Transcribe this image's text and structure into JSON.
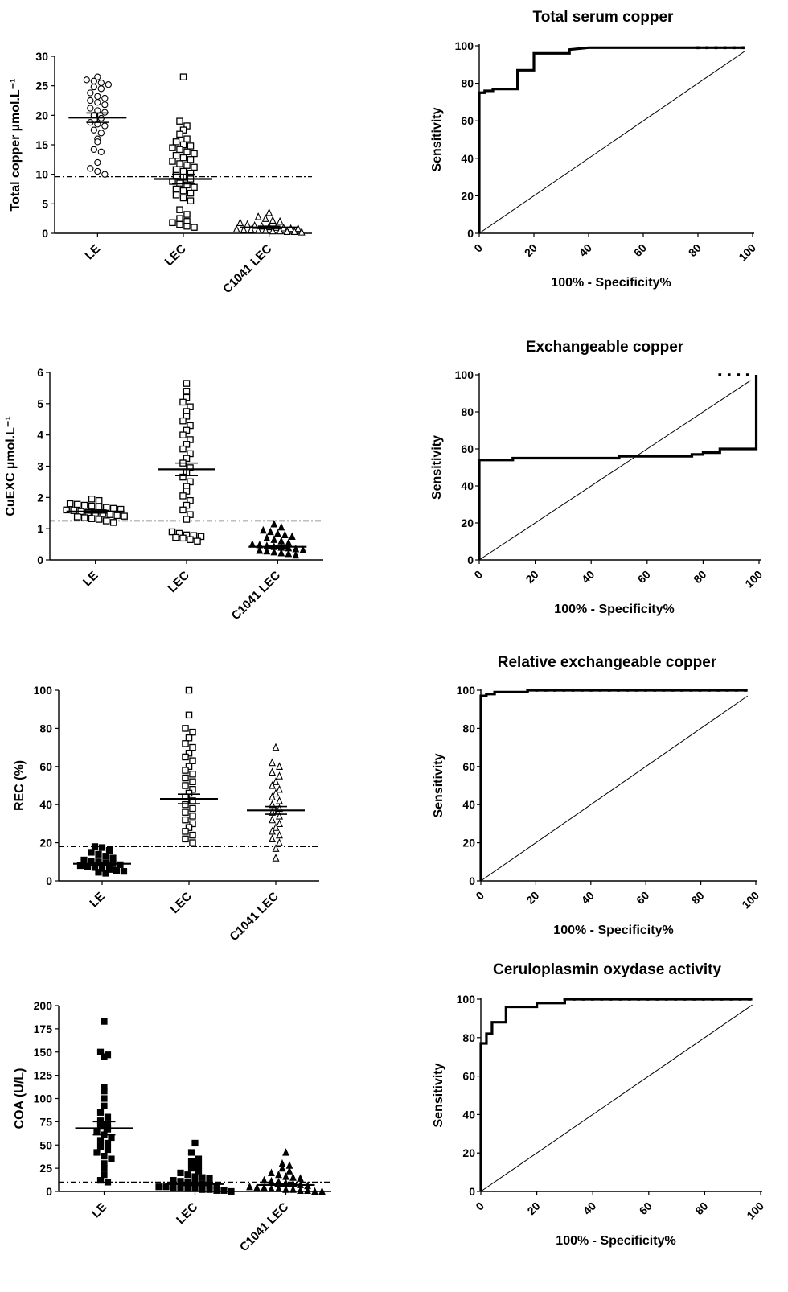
{
  "chart_data": [
    {
      "type": "scatter",
      "title": "",
      "ylabel": "Total copper µmol.L⁻¹",
      "ylim": [
        0,
        30
      ],
      "yticks": [
        0,
        5,
        10,
        15,
        20,
        25,
        30
      ],
      "categories": [
        "LE",
        "LEC",
        "C1041 LEC"
      ],
      "markers": [
        "circle-open",
        "square-open",
        "triangle-open"
      ],
      "series": [
        {
          "values": [
            26.5,
            26,
            25.8,
            25.5,
            25.2,
            24.8,
            24.5,
            23.8,
            23.2,
            22.9,
            22.5,
            22.2,
            21.8,
            21.2,
            20.8,
            20.5,
            20.0,
            19.5,
            18.8,
            18.5,
            18.2,
            17.5,
            17.0,
            16.0,
            15.5,
            14.2,
            13.8,
            12.0,
            11.0,
            10.5,
            10.0
          ],
          "mean": 19.6,
          "sem": 0.8
        },
        {
          "values": [
            26.5,
            19.0,
            18.2,
            17.5,
            16.8,
            16.0,
            15.5,
            15.0,
            14.8,
            14.5,
            14.2,
            13.8,
            13.5,
            13.2,
            12.8,
            12.5,
            12.2,
            11.8,
            11.5,
            11.2,
            10.8,
            10.5,
            10.2,
            9.8,
            9.5,
            9.2,
            8.8,
            8.5,
            8.2,
            7.8,
            7.5,
            7.2,
            6.8,
            6.5,
            6.0,
            5.5,
            4.0,
            3.2,
            2.5,
            2.0,
            1.8,
            1.5,
            1.2,
            1.0
          ],
          "mean": 9.2,
          "sem": 0.8
        },
        {
          "values": [
            3.5,
            2.8,
            2.5,
            2.2,
            2.0,
            1.8,
            1.5,
            1.3,
            1.2,
            1.1,
            1.0,
            0.9,
            0.8,
            0.8,
            0.7,
            0.6,
            0.6,
            0.5,
            0.5,
            0.4,
            0.4,
            0.3,
            0.3,
            0.2
          ],
          "mean": 1.0,
          "sem": 0.2
        }
      ],
      "cutoff": 9.6
    },
    {
      "type": "line",
      "title": "Total serum copper",
      "xlabel": "100% - Specificity%",
      "ylabel": "Sensitivity",
      "xlim": [
        0,
        100
      ],
      "ylim": [
        0,
        100
      ],
      "xticks": [
        0,
        20,
        40,
        60,
        80,
        100
      ],
      "yticks": [
        0,
        20,
        40,
        60,
        80,
        100
      ],
      "series": [
        {
          "x": [
            0,
            0,
            2,
            2,
            5,
            5,
            8,
            8,
            14,
            14,
            20,
            20,
            33,
            33,
            40,
            50,
            60,
            70,
            80,
            90,
            97
          ],
          "y": [
            0,
            75,
            75,
            76,
            76,
            77,
            77,
            77,
            77,
            87,
            87,
            96,
            96,
            98,
            99,
            99,
            99,
            99,
            99,
            99,
            99
          ],
          "markers": true
        },
        {
          "x": [
            0,
            100
          ],
          "y": [
            0,
            100
          ],
          "reference": true
        }
      ]
    },
    {
      "type": "scatter",
      "title": "",
      "ylabel": "CuEXC µmol.L⁻¹",
      "ylim": [
        0,
        6
      ],
      "yticks": [
        0,
        1,
        2,
        3,
        4,
        5,
        6
      ],
      "categories": [
        "LE",
        "LEC",
        "C1041 LEC"
      ],
      "markers": [
        "square-open",
        "square-open",
        "triangle-filled"
      ],
      "series": [
        {
          "values": [
            1.95,
            1.9,
            1.8,
            1.78,
            1.75,
            1.72,
            1.7,
            1.68,
            1.65,
            1.62,
            1.6,
            1.58,
            1.55,
            1.52,
            1.5,
            1.48,
            1.45,
            1.42,
            1.4,
            1.38,
            1.35,
            1.32,
            1.3,
            1.25,
            1.2
          ],
          "mean": 1.55,
          "sem": 0.05
        },
        {
          "values": [
            5.65,
            5.4,
            5.2,
            5.05,
            4.9,
            4.75,
            4.6,
            4.45,
            4.3,
            4.15,
            4.0,
            3.85,
            3.7,
            3.55,
            3.4,
            3.25,
            3.1,
            2.95,
            2.8,
            2.65,
            2.5,
            2.35,
            2.2,
            2.05,
            1.9,
            1.75,
            1.6,
            1.45,
            1.3,
            0.9,
            0.85,
            0.8,
            0.78,
            0.75,
            0.72,
            0.7,
            0.65,
            0.6
          ],
          "mean": 2.9,
          "sem": 0.2
        },
        {
          "values": [
            1.15,
            1.05,
            0.95,
            0.9,
            0.85,
            0.8,
            0.75,
            0.7,
            0.65,
            0.6,
            0.55,
            0.5,
            0.48,
            0.45,
            0.42,
            0.4,
            0.38,
            0.35,
            0.32,
            0.3,
            0.28,
            0.25,
            0.22,
            0.2,
            0.15
          ],
          "mean": 0.42,
          "sem": 0.04
        }
      ],
      "cutoff": 1.25
    },
    {
      "type": "line",
      "title": "Exchangeable copper",
      "xlabel": "100% - Specificity%",
      "ylabel": "Sensitivity",
      "xlim": [
        0,
        100
      ],
      "ylim": [
        0,
        100
      ],
      "xticks": [
        0,
        20,
        40,
        60,
        80,
        100
      ],
      "yticks": [
        0,
        20,
        40,
        60,
        80,
        100
      ],
      "series": [
        {
          "x": [
            0,
            0,
            12,
            12,
            50,
            50,
            76,
            76,
            80,
            80,
            86,
            86,
            99,
            99
          ],
          "y": [
            0,
            54,
            54,
            55,
            55,
            56,
            56,
            57,
            57,
            58,
            58,
            60,
            60,
            100
          ],
          "markers": true
        },
        {
          "x": [
            0,
            100
          ],
          "y": [
            0,
            100
          ],
          "reference": true
        }
      ]
    },
    {
      "type": "scatter",
      "title": "",
      "ylabel": "REC (%)",
      "ylim": [
        0,
        100
      ],
      "yticks": [
        0,
        20,
        40,
        60,
        80,
        100
      ],
      "categories": [
        "LE",
        "LEC",
        "C1041 LEC"
      ],
      "markers": [
        "filled-square",
        "square-open",
        "triangle-open"
      ],
      "series": [
        {
          "values": [
            18,
            17.5,
            16,
            15,
            14,
            13,
            12,
            11,
            10.5,
            10,
            9.5,
            9,
            8.5,
            8,
            7.5,
            7,
            6.5,
            6,
            5.5,
            5,
            4.5,
            4
          ],
          "mean": 9,
          "sem": 0.8
        },
        {
          "values": [
            100,
            87,
            80,
            78,
            75,
            72,
            70,
            67,
            65,
            63,
            60,
            58,
            56,
            54,
            52,
            50,
            48,
            46,
            44,
            42,
            40,
            38,
            36,
            34,
            32,
            30,
            28,
            26,
            24,
            22,
            20
          ],
          "mean": 43,
          "sem": 2.5
        },
        {
          "values": [
            70,
            62,
            60,
            57,
            55,
            52,
            50,
            48,
            46,
            44,
            42,
            40,
            38,
            36,
            34,
            32,
            30,
            28,
            26,
            24,
            22,
            20,
            17,
            12
          ],
          "mean": 37,
          "sem": 2.0
        }
      ],
      "cutoff": 18
    },
    {
      "type": "line",
      "title": "Relative exchangeable copper",
      "xlabel": "100% - Specificity%",
      "ylabel": "Sensitivity",
      "xlim": [
        0,
        100
      ],
      "ylim": [
        0,
        100
      ],
      "xticks": [
        0,
        20,
        40,
        60,
        80,
        100
      ],
      "yticks": [
        0,
        20,
        40,
        60,
        80,
        100
      ],
      "series": [
        {
          "x": [
            0,
            0,
            2,
            2,
            5,
            5,
            17,
            17,
            97
          ],
          "y": [
            0,
            97,
            97,
            98,
            98,
            99,
            99,
            100,
            100
          ],
          "markers": true
        },
        {
          "x": [
            0,
            100
          ],
          "y": [
            0,
            100
          ],
          "reference": true
        }
      ]
    },
    {
      "type": "scatter",
      "title": "",
      "ylabel": "COA (U/L)",
      "ylim": [
        0,
        200
      ],
      "yticks": [
        0,
        25,
        50,
        75,
        100,
        125,
        150,
        175,
        200
      ],
      "categories": [
        "LE",
        "LEC",
        "C1041 LEC"
      ],
      "markers": [
        "filled-square",
        "filled-square",
        "triangle-filled"
      ],
      "series": [
        {
          "values": [
            183,
            150,
            147,
            145,
            112,
            108,
            100,
            92,
            85,
            80,
            76,
            73,
            70,
            67,
            64,
            61,
            58,
            55,
            52,
            48,
            45,
            42,
            38,
            35,
            30,
            25,
            18,
            12,
            10
          ],
          "mean": 68,
          "sem": 7
        },
        {
          "values": [
            52,
            42,
            35,
            32,
            28,
            25,
            22,
            20,
            18,
            16,
            15,
            14,
            12,
            11,
            10,
            9,
            8,
            7,
            6,
            5,
            5,
            4,
            4,
            3,
            3,
            2,
            2,
            1,
            1,
            0
          ],
          "mean": 8,
          "sem": 1.5
        },
        {
          "values": [
            42,
            30,
            28,
            25,
            22,
            20,
            18,
            16,
            15,
            14,
            12,
            11,
            10,
            9,
            8,
            7,
            6,
            5,
            4,
            4,
            3,
            3,
            2,
            2,
            1,
            1,
            0,
            0
          ],
          "mean": 7,
          "sem": 1.5
        }
      ],
      "cutoff": 10
    },
    {
      "type": "line",
      "title": "Ceruloplasmin oxydase activity",
      "xlabel": "100% - Specificity%",
      "ylabel": "Sensitivity",
      "xlim": [
        0,
        100
      ],
      "ylim": [
        0,
        100
      ],
      "xticks": [
        0,
        20,
        40,
        60,
        80,
        100
      ],
      "yticks": [
        0,
        20,
        40,
        60,
        80,
        100
      ],
      "series": [
        {
          "x": [
            0,
            0,
            0,
            2,
            2,
            4,
            4,
            9,
            9,
            20,
            20,
            30,
            30,
            97
          ],
          "y": [
            0,
            50,
            77,
            77,
            82,
            82,
            88,
            88,
            96,
            96,
            98,
            98,
            100,
            100
          ],
          "markers": true
        },
        {
          "x": [
            0,
            100
          ],
          "y": [
            0,
            100
          ],
          "reference": true
        }
      ]
    }
  ]
}
